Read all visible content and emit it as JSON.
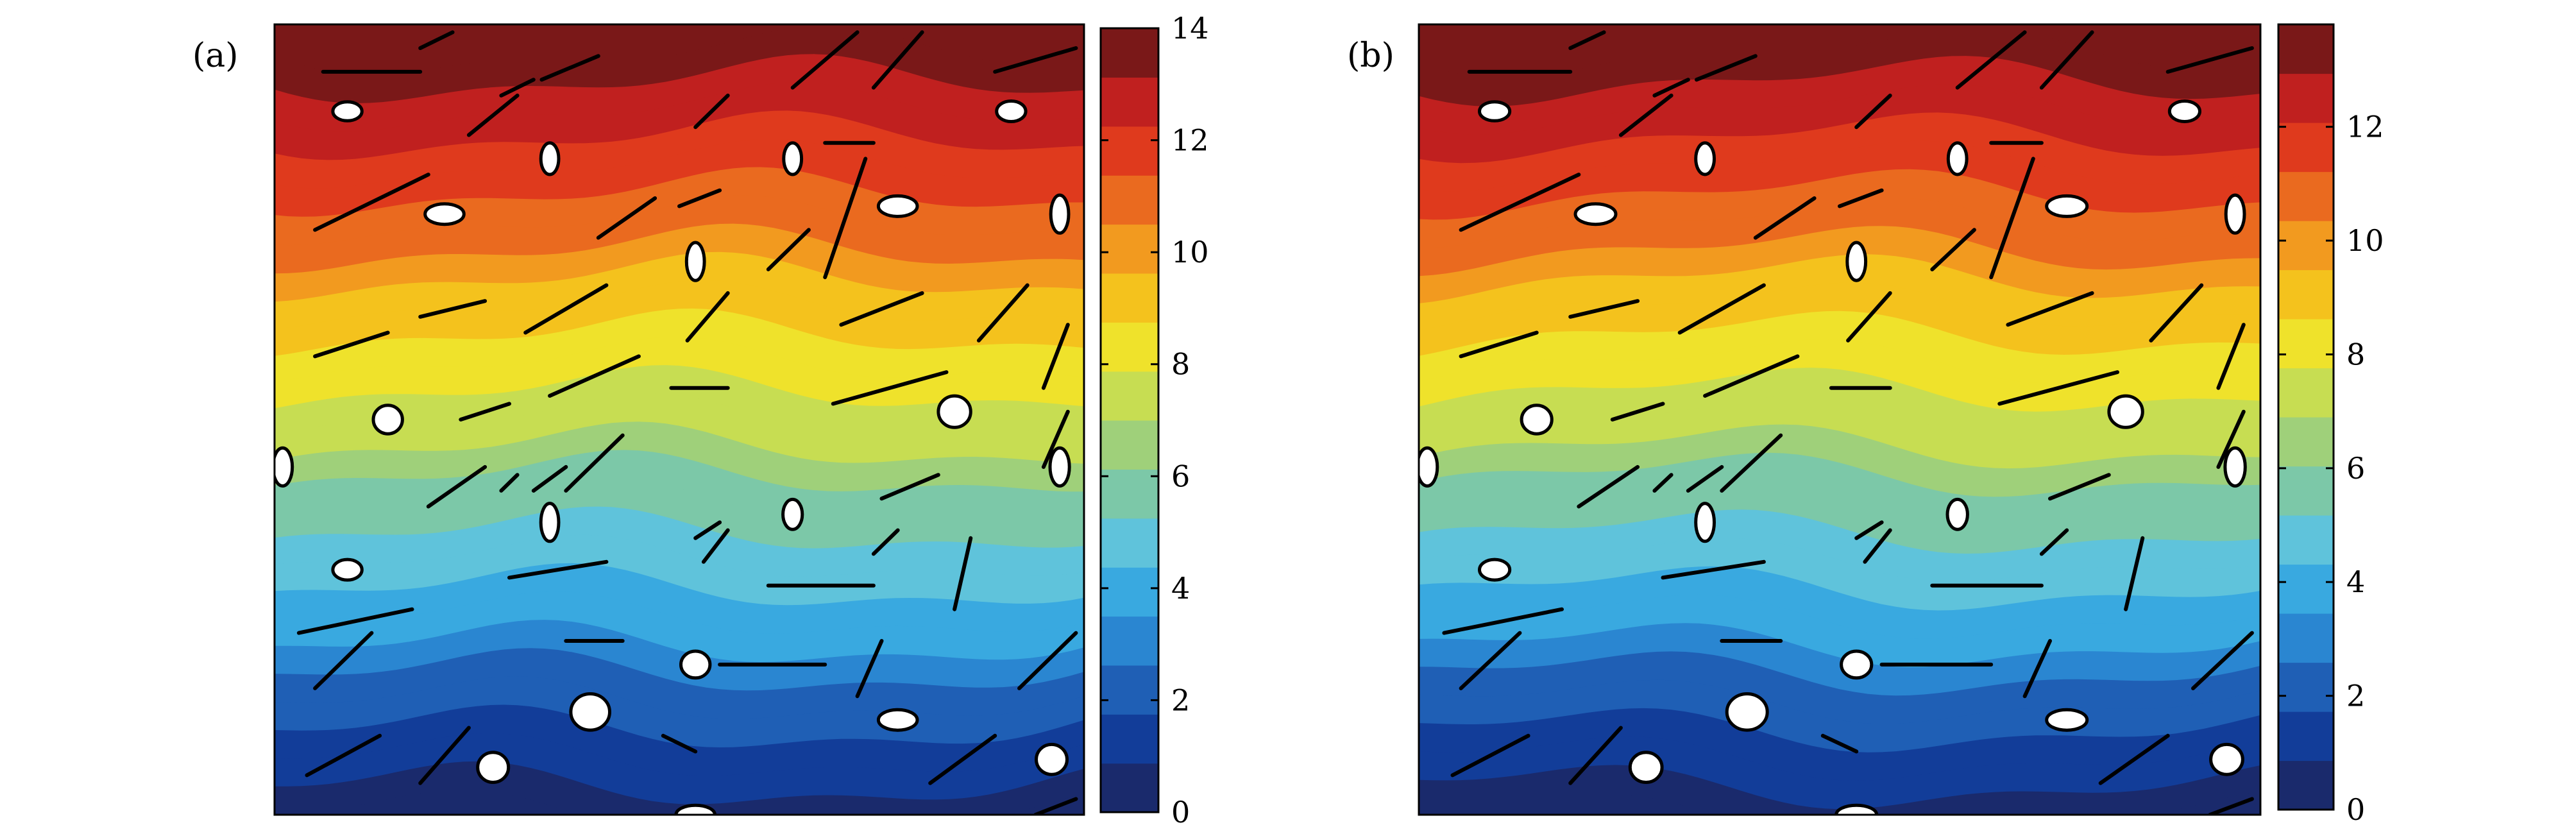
{
  "figure": {
    "panels": [
      {
        "label": "(a)",
        "chart_data": {
          "type": "heatmap",
          "colorbar": {
            "min": 0,
            "max": 14,
            "ticks": [
              0,
              2,
              4,
              6,
              8,
              10,
              12,
              14
            ]
          },
          "field": "filled contour, values increase from bottom (0) to top (14), wavy horizontal bands",
          "ellipse_inclusions": 22,
          "line_cracks": 46
        }
      },
      {
        "label": "(b)",
        "chart_data": {
          "type": "heatmap",
          "colorbar": {
            "min": 0,
            "max": 13.8,
            "ticks": [
              0,
              2,
              4,
              6,
              8,
              10,
              12
            ]
          },
          "field": "filled contour, values increase from bottom (0) to top (~13.8), wavy horizontal bands",
          "ellipse_inclusions": 22,
          "line_cracks": 46
        }
      }
    ],
    "colormap": [
      "#1a2a6c",
      "#123d99",
      "#1f5fb5",
      "#2a86d1",
      "#39a9e0",
      "#5fc3db",
      "#7cc8a8",
      "#9fd07a",
      "#c7dd52",
      "#efe22b",
      "#f4c21d",
      "#f29a1f",
      "#ea6a1f",
      "#df3a1d",
      "#c0201f",
      "#7a1818"
    ]
  }
}
